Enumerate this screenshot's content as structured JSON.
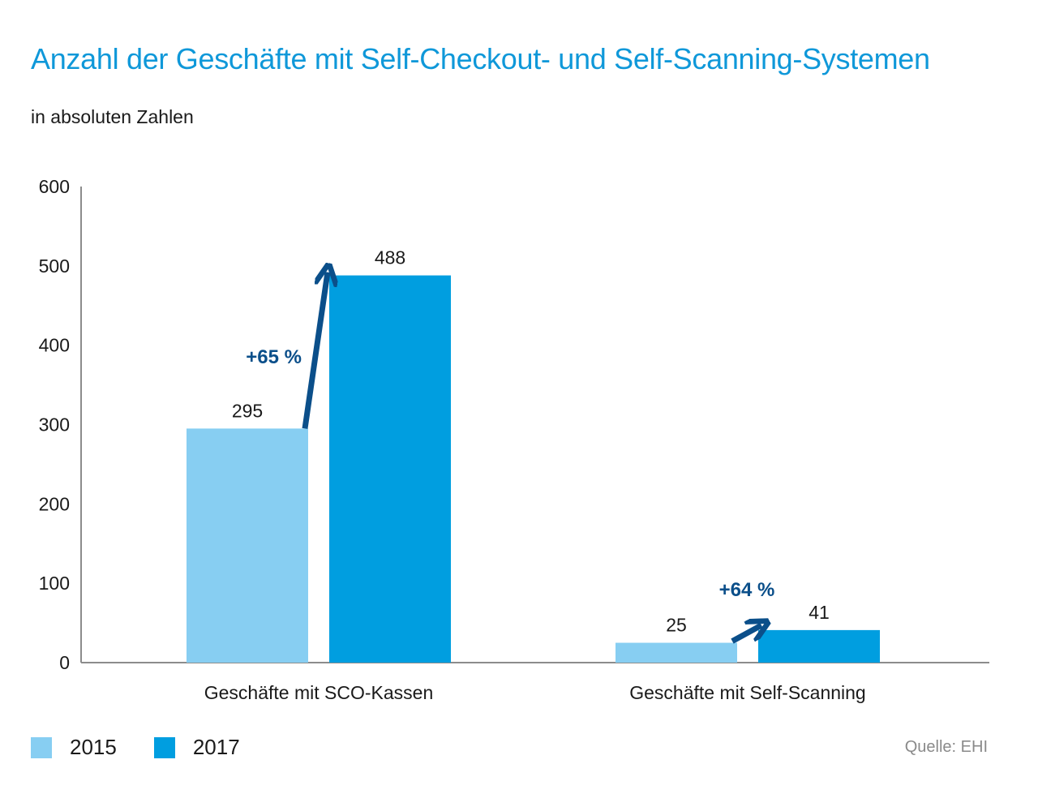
{
  "chart_data": {
    "type": "bar",
    "title": "Anzahl der Geschäfte mit Self-Checkout- und Self-Scanning-Systemen",
    "subtitle": "in absoluten Zahlen",
    "categories": [
      "Geschäfte mit SCO-Kassen",
      "Geschäfte mit Self-Scanning"
    ],
    "series": [
      {
        "name": "2015",
        "values": [
          295,
          25
        ],
        "color": "#87cef2"
      },
      {
        "name": "2017",
        "values": [
          488,
          41
        ],
        "color": "#009ee0"
      }
    ],
    "data_labels": [
      [
        "295",
        "25"
      ],
      [
        "488",
        "41"
      ]
    ],
    "annotations": [
      {
        "category": "Geschäfte mit SCO-Kassen",
        "text": "+65 %"
      },
      {
        "category": "Geschäfte mit Self-Scanning",
        "text": "+64 %"
      }
    ],
    "annotation_color": "#0b4f8a",
    "ylim": [
      0,
      600
    ],
    "yticks": [
      0,
      100,
      200,
      300,
      400,
      500,
      600
    ],
    "xlabel": "",
    "ylabel": "",
    "grid": false,
    "legend_position": "bottom-left"
  },
  "source": "Quelle: EHI"
}
